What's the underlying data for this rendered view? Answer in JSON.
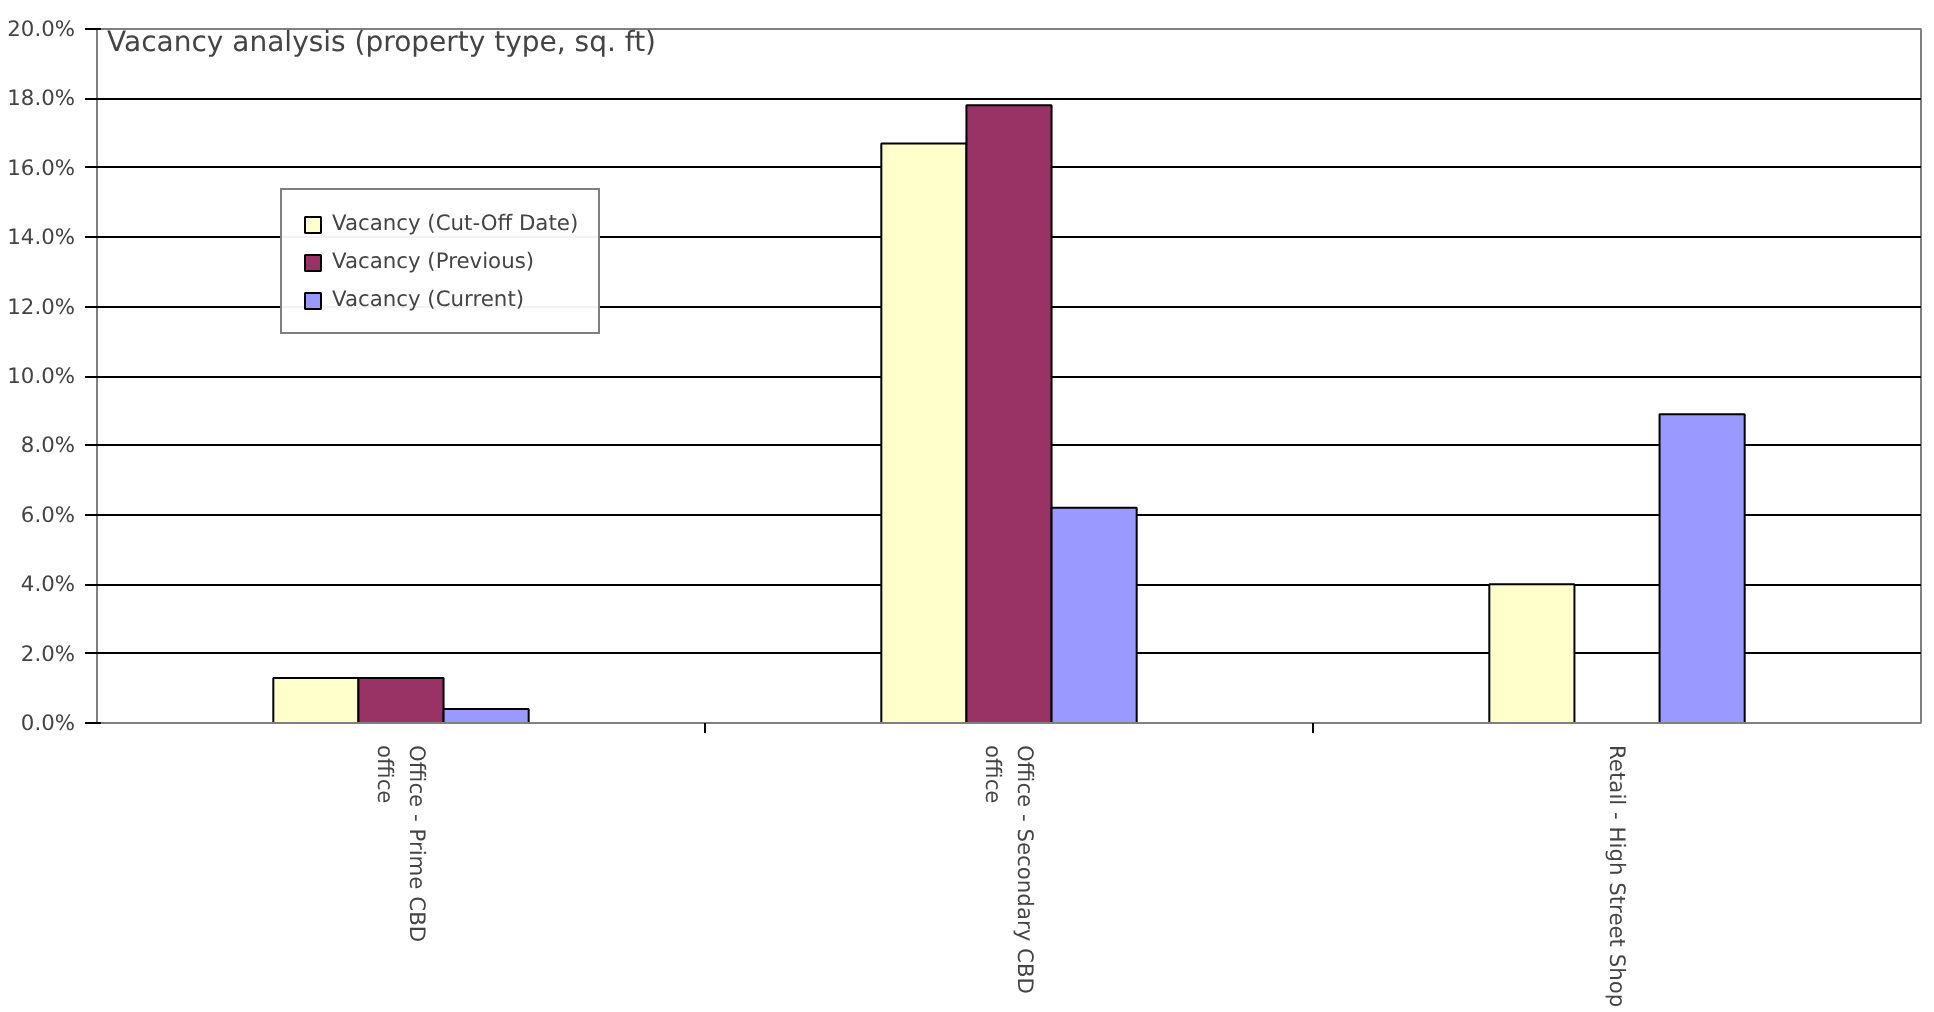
{
  "chart_data": {
    "type": "bar",
    "title": "Vacancy analysis (property type, sq. ft)",
    "categories": [
      "Office - Prime CBD\noffice",
      "Office - Secondary CBD\noffice",
      "Retail - High Street Shop"
    ],
    "series": [
      {
        "name": "Vacancy (Cut-Off Date)",
        "color": "#ffffcc",
        "values": [
          1.3,
          16.7,
          4.0
        ]
      },
      {
        "name": "Vacancy (Previous)",
        "color": "#993366",
        "values": [
          1.3,
          17.8,
          null
        ]
      },
      {
        "name": "Vacancy (Current)",
        "color": "#9999ff",
        "values": [
          0.4,
          6.2,
          8.9
        ]
      }
    ],
    "ylim": [
      0,
      20
    ],
    "yticks": [
      {
        "value": 0,
        "label": "0.0%"
      },
      {
        "value": 2,
        "label": "2.0%"
      },
      {
        "value": 4,
        "label": "4.0%"
      },
      {
        "value": 6,
        "label": "6.0%"
      },
      {
        "value": 8,
        "label": "8.0%"
      },
      {
        "value": 10,
        "label": "10.0%"
      },
      {
        "value": 12,
        "label": "12.0%"
      },
      {
        "value": 14,
        "label": "14.0%"
      },
      {
        "value": 16,
        "label": "16.0%"
      },
      {
        "value": 18,
        "label": "18.0%"
      },
      {
        "value": 20,
        "label": "20.0%"
      }
    ],
    "grid": "y",
    "legend": "top left"
  }
}
